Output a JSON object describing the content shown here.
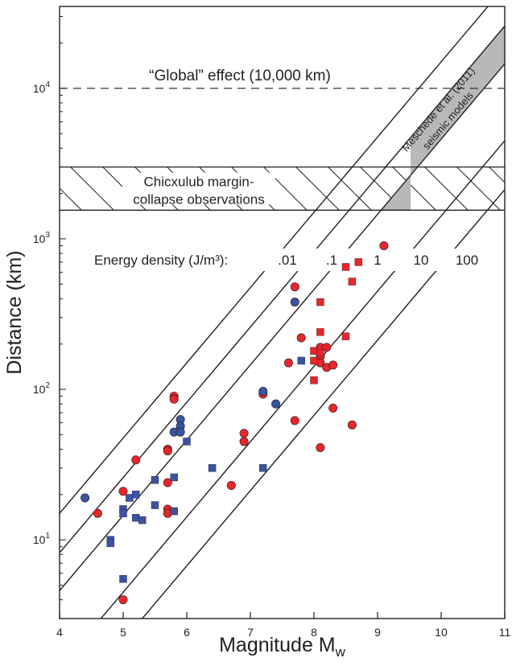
{
  "chart_data": {
    "type": "scatter",
    "xlabel": "Magnitude M",
    "xlabel_sub": "w",
    "ylabel": "Distance (km)",
    "xlim": [
      4,
      11
    ],
    "ylim": [
      3,
      35000
    ],
    "y_scale": "log",
    "x_ticks": [
      4,
      5,
      6,
      7,
      8,
      9,
      10,
      11
    ],
    "y_ticks": [
      {
        "value": 10,
        "base": "10",
        "exp": "1"
      },
      {
        "value": 100,
        "base": "10",
        "exp": "2"
      },
      {
        "value": 1000,
        "base": "10",
        "exp": "3"
      },
      {
        "value": 10000,
        "base": "10",
        "exp": "4"
      }
    ],
    "global_line": {
      "value": 10000,
      "label": "“Global” effect (10,000 km)"
    },
    "hatched_band": {
      "ymin": 1550,
      "ymax": 3000,
      "label_line1": "Chicxulub margin-",
      "label_line2": "collapse observations"
    },
    "shaded_band": {
      "label_line1": "Meschede et al. (2011)",
      "label_line2": "seismic models"
    },
    "energy_density": {
      "label": "Energy density (J/m³):",
      "lines": [
        {
          "label": ".01",
          "x0": 4.0,
          "y0": 15
        },
        {
          "label": ".1",
          "x0": 4.0,
          "y0": 8.2
        },
        {
          "label": "1",
          "x0": 4.0,
          "y0": 4.6
        },
        {
          "label": "10",
          "x0": 4.65,
          "y0": 3.0
        },
        {
          "label": "100",
          "x0": 5.3,
          "y0": 3.0
        }
      ],
      "slope_decades_per_mag": 0.5
    },
    "series": [
      {
        "marker": "circle",
        "color": "#e8262b",
        "points": [
          [
            4.6,
            15
          ],
          [
            5.0,
            21
          ],
          [
            5.0,
            4.0
          ],
          [
            5.2,
            34
          ],
          [
            5.7,
            24
          ],
          [
            5.7,
            40
          ],
          [
            5.7,
            39
          ],
          [
            5.7,
            16
          ],
          [
            5.7,
            15
          ],
          [
            5.8,
            90
          ],
          [
            5.8,
            86
          ],
          [
            6.7,
            23
          ],
          [
            6.9,
            51
          ],
          [
            6.9,
            45
          ],
          [
            7.2,
            93
          ],
          [
            7.6,
            150
          ],
          [
            7.7,
            480
          ],
          [
            7.7,
            62
          ],
          [
            7.8,
            220
          ],
          [
            8.1,
            190
          ],
          [
            8.1,
            165
          ],
          [
            8.1,
            150
          ],
          [
            8.2,
            190
          ],
          [
            8.2,
            140
          ],
          [
            8.3,
            145
          ],
          [
            8.1,
            41
          ],
          [
            8.3,
            75
          ],
          [
            8.6,
            58
          ],
          [
            9.1,
            900
          ]
        ]
      },
      {
        "marker": "circle",
        "color": "#3a53a4",
        "points": [
          [
            4.4,
            19
          ],
          [
            5.8,
            52
          ],
          [
            5.9,
            63
          ],
          [
            5.9,
            57
          ],
          [
            5.9,
            52
          ],
          [
            7.2,
            97
          ],
          [
            7.4,
            80
          ],
          [
            7.7,
            380
          ]
        ]
      },
      {
        "marker": "square",
        "color": "#3a53a4",
        "points": [
          [
            4.8,
            10
          ],
          [
            4.8,
            9.5
          ],
          [
            5.0,
            16
          ],
          [
            5.0,
            15
          ],
          [
            5.0,
            5.5
          ],
          [
            5.1,
            19
          ],
          [
            5.2,
            20
          ],
          [
            5.2,
            14
          ],
          [
            5.3,
            13.5
          ],
          [
            5.5,
            25
          ],
          [
            5.5,
            17
          ],
          [
            5.8,
            26
          ],
          [
            5.8,
            15.5
          ],
          [
            6.0,
            45
          ],
          [
            6.4,
            30
          ],
          [
            7.2,
            30
          ],
          [
            7.8,
            155
          ]
        ]
      },
      {
        "marker": "square",
        "color": "#e8262b",
        "points": [
          [
            8.0,
            180
          ],
          [
            8.0,
            155
          ],
          [
            8.0,
            115
          ],
          [
            8.1,
            380
          ],
          [
            8.1,
            240
          ],
          [
            8.1,
            175
          ],
          [
            8.5,
            650
          ],
          [
            8.5,
            225
          ],
          [
            8.6,
            520
          ],
          [
            8.7,
            700
          ]
        ]
      }
    ]
  }
}
